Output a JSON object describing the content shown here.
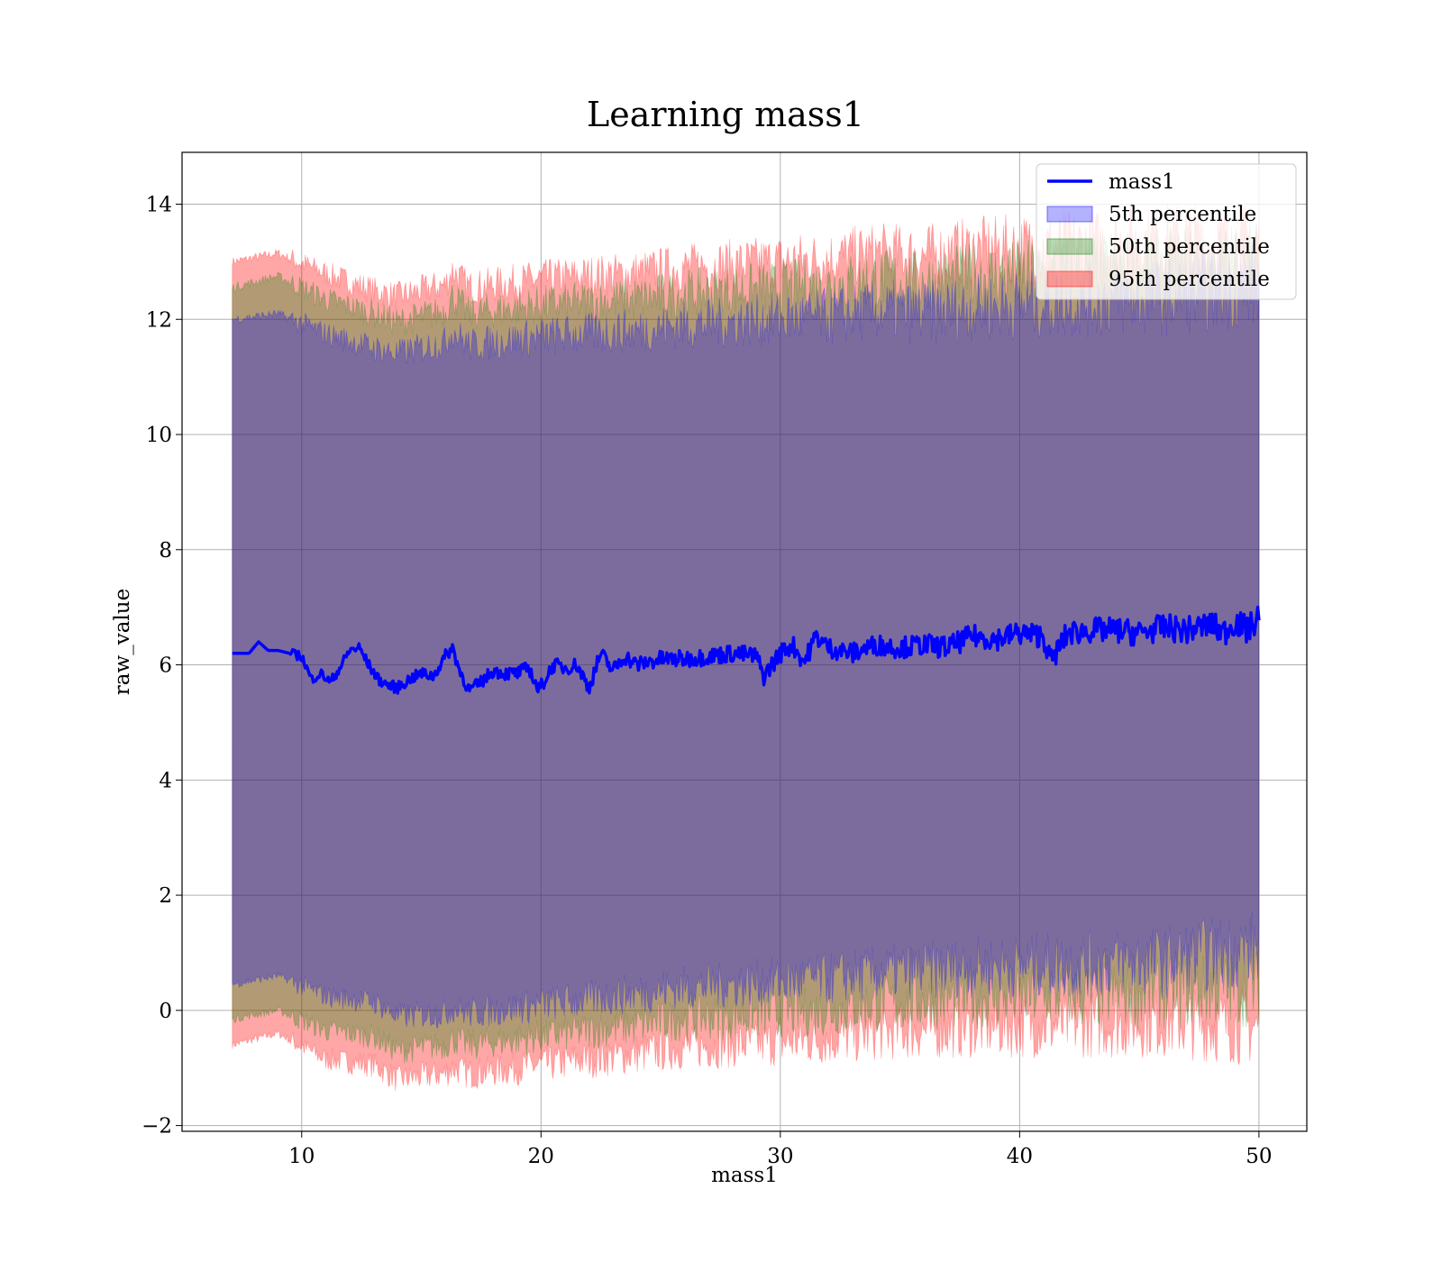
{
  "chart_data": {
    "type": "area",
    "title": "Learning mass1",
    "xlabel": "mass1",
    "ylabel": "raw_value",
    "xlim": [
      5,
      52
    ],
    "ylim": [
      -2.1,
      14.9
    ],
    "xticks": [
      10,
      20,
      30,
      40,
      50
    ],
    "yticks": [
      -2,
      0,
      2,
      4,
      6,
      8,
      10,
      12,
      14
    ],
    "ytick_labels": [
      "−2",
      "0",
      "2",
      "4",
      "6",
      "8",
      "10",
      "12",
      "14"
    ],
    "grid": true,
    "legend_position": "top-right",
    "x_range": [
      7.1,
      50
    ],
    "series": [
      {
        "name": "mass1",
        "kind": "line",
        "color": "#0000ff",
        "x": [
          7.1,
          7.8,
          8.2,
          8.6,
          9.0,
          9.5,
          10.0,
          10.4,
          10.8,
          11.2,
          11.6,
          12.0,
          12.4,
          12.8,
          13.2,
          13.6,
          14.0,
          14.5,
          15.0,
          15.5,
          16.0,
          16.3,
          16.6,
          17.0,
          17.5,
          18.0,
          18.5,
          19.0,
          19.5,
          19.9,
          20.5,
          21.0,
          21.5,
          22.0,
          22.5,
          23.0,
          23.5,
          24.0,
          25.0,
          26.0,
          27.0,
          28.0,
          29.0,
          29.3,
          30.0,
          30.5,
          31.0,
          31.5,
          32.0,
          33.0,
          34.0,
          35.0,
          36.0,
          37.0,
          38.0,
          39.0,
          40.0,
          41.0,
          41.3,
          42.0,
          43.0,
          44.0,
          45.0,
          46.0,
          47.0,
          48.0,
          48.5,
          49.0,
          49.5,
          50.0
        ],
        "y": [
          6.2,
          6.2,
          6.4,
          6.25,
          6.25,
          6.2,
          6.15,
          5.75,
          5.85,
          5.7,
          5.95,
          6.25,
          6.3,
          6.0,
          5.75,
          5.65,
          5.6,
          5.75,
          5.85,
          5.8,
          6.15,
          6.3,
          5.9,
          5.55,
          5.7,
          5.9,
          5.85,
          5.85,
          5.95,
          5.55,
          6.0,
          5.95,
          6.0,
          5.6,
          6.2,
          5.9,
          6.15,
          6.0,
          6.1,
          6.1,
          6.15,
          6.2,
          6.15,
          5.8,
          6.2,
          6.35,
          6.05,
          6.5,
          6.3,
          6.2,
          6.35,
          6.3,
          6.35,
          6.3,
          6.5,
          6.45,
          6.55,
          6.5,
          6.05,
          6.55,
          6.6,
          6.6,
          6.55,
          6.65,
          6.6,
          6.7,
          6.55,
          6.75,
          6.6,
          6.8
        ]
      },
      {
        "name": "5th percentile",
        "kind": "band",
        "color": "#0000ff",
        "opacity": 0.3,
        "upper": [
          12.0,
          12.1,
          11.75,
          11.5,
          11.4,
          11.6,
          11.8,
          11.55,
          11.65,
          11.7,
          11.75,
          11.8,
          11.9,
          11.95,
          12.0,
          12.05,
          12.15,
          12.1,
          12.2,
          12.3,
          12.4,
          12.6
        ],
        "lower": [
          0.45,
          0.6,
          0.25,
          0.15,
          -0.1,
          -0.05,
          0.05,
          -0.05,
          0.05,
          0.1,
          0.2,
          0.3,
          0.4,
          0.45,
          0.5,
          0.55,
          0.65,
          0.7,
          0.75,
          0.8,
          0.85,
          1.1
        ]
      },
      {
        "name": "50th percentile",
        "kind": "band",
        "color": "#008000",
        "opacity": 0.3,
        "upper": [
          12.55,
          12.75,
          12.35,
          12.1,
          11.95,
          12.15,
          12.4,
          12.1,
          12.2,
          12.25,
          12.3,
          12.35,
          12.45,
          12.5,
          12.55,
          12.6,
          12.7,
          12.65,
          12.75,
          12.8,
          12.9,
          13.0
        ],
        "lower": [
          -0.15,
          0.0,
          -0.35,
          -0.45,
          -0.7,
          -0.6,
          -0.5,
          -0.6,
          -0.5,
          -0.45,
          -0.35,
          -0.25,
          -0.15,
          -0.1,
          -0.05,
          0.0,
          0.1,
          0.15,
          0.2,
          0.25,
          0.3,
          0.4
        ]
      },
      {
        "name": "95th percentile",
        "kind": "band",
        "color": "#ff0000",
        "opacity": 0.35,
        "upper": [
          13.0,
          13.15,
          12.8,
          12.5,
          12.4,
          12.6,
          12.85,
          12.55,
          12.65,
          12.7,
          12.75,
          12.8,
          12.9,
          12.95,
          13.0,
          13.05,
          13.15,
          13.1,
          13.2,
          13.25,
          13.35,
          13.3
        ],
        "lower": [
          -0.6,
          -0.4,
          -0.85,
          -0.95,
          -1.2,
          -1.1,
          -1.0,
          -1.1,
          -1.0,
          -0.95,
          -0.85,
          -0.75,
          -0.65,
          -0.6,
          -0.55,
          -0.5,
          -0.4,
          -0.35,
          -0.3,
          -0.25,
          -0.2,
          -0.3
        ]
      }
    ],
    "band_x": [
      7.1,
      9.0,
      11.0,
      13.0,
      14.0,
      16.0,
      16.3,
      17.0,
      19.0,
      20.0,
      22.0,
      24.0,
      26.0,
      28.0,
      30.0,
      32.0,
      34.0,
      36.0,
      38.0,
      42.0,
      46.0,
      50.0
    ]
  }
}
